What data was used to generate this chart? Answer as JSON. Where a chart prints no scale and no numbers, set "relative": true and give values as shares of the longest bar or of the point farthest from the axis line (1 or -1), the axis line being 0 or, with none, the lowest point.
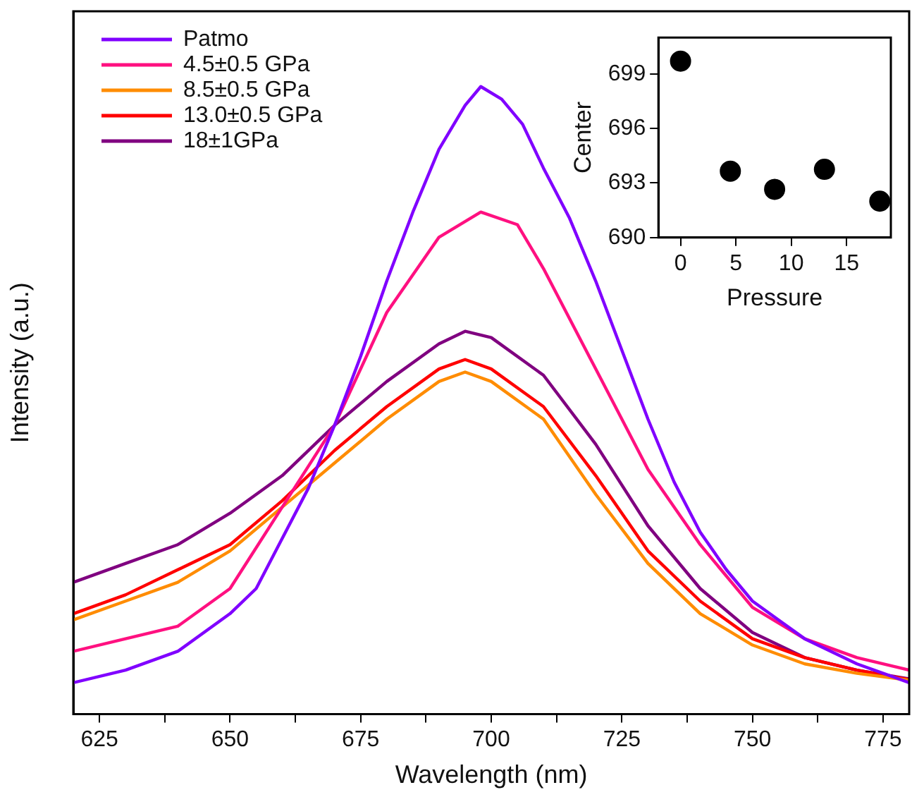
{
  "chart_data": [
    {
      "type": "line",
      "relative": true,
      "xlabel": "Wavelength (nm)",
      "ylabel": "Intensity (a.u.)",
      "legend": "top left",
      "xlim": [
        620,
        780
      ],
      "xticks": [
        625,
        {
          "value": 637.5,
          "label": null
        },
        650,
        {
          "value": 662.5,
          "label": null
        },
        675,
        {
          "value": 687.5,
          "label": null
        },
        700,
        {
          "value": 712.5,
          "label": null
        },
        725,
        {
          "value": 737.5,
          "label": null
        },
        750,
        {
          "value": 762.5,
          "label": null
        },
        775
      ],
      "series": [
        {
          "name": "Patmo",
          "color": "#8000ff",
          "x": [
            620,
            630,
            640,
            650,
            655,
            660,
            665,
            670,
            675,
            680,
            685,
            690,
            695,
            698,
            702,
            706,
            710,
            715,
            720,
            725,
            730,
            735,
            740,
            745,
            750,
            755,
            760,
            770,
            780
          ],
          "values": [
            0.05,
            0.07,
            0.1,
            0.16,
            0.2,
            0.28,
            0.36,
            0.46,
            0.57,
            0.69,
            0.8,
            0.9,
            0.97,
            1,
            0.98,
            0.94,
            0.87,
            0.79,
            0.69,
            0.58,
            0.47,
            0.37,
            0.29,
            0.23,
            0.18,
            0.15,
            0.12,
            0.08,
            0.05
          ]
        },
        {
          "name": "4.5±0.5 GPa",
          "color": "#ff1080",
          "x": [
            620,
            630,
            640,
            650,
            660,
            670,
            680,
            690,
            698,
            705,
            710,
            720,
            730,
            740,
            750,
            760,
            770,
            780
          ],
          "values": [
            0.1,
            0.12,
            0.14,
            0.2,
            0.33,
            0.46,
            0.64,
            0.76,
            0.8,
            0.78,
            0.71,
            0.55,
            0.39,
            0.27,
            0.17,
            0.12,
            0.09,
            0.07
          ]
        },
        {
          "name": "8.5±0.5 GPa",
          "color": "#ff8c00",
          "x": [
            620,
            630,
            640,
            650,
            660,
            670,
            680,
            690,
            695,
            700,
            710,
            720,
            730,
            740,
            750,
            760,
            770,
            780
          ],
          "values": [
            0.15,
            0.18,
            0.21,
            0.26,
            0.33,
            0.4,
            0.47,
            0.53,
            0.545,
            0.53,
            0.47,
            0.35,
            0.24,
            0.16,
            0.11,
            0.08,
            0.065,
            0.054
          ]
        },
        {
          "name": "13.0±0.5 GPa",
          "color": "#ff0000",
          "x": [
            620,
            630,
            640,
            650,
            660,
            670,
            680,
            690,
            695,
            700,
            710,
            720,
            730,
            740,
            750,
            760,
            770,
            780
          ],
          "values": [
            0.16,
            0.19,
            0.23,
            0.27,
            0.34,
            0.42,
            0.49,
            0.55,
            0.565,
            0.55,
            0.49,
            0.38,
            0.26,
            0.18,
            0.12,
            0.09,
            0.07,
            0.055
          ]
        },
        {
          "name": "18±1GPa",
          "color": "#800080",
          "x": [
            620,
            630,
            640,
            650,
            660,
            670,
            680,
            690,
            695,
            700,
            710,
            720,
            730,
            740,
            750,
            760,
            770,
            780
          ],
          "values": [
            0.21,
            0.24,
            0.27,
            0.32,
            0.38,
            0.46,
            0.53,
            0.59,
            0.61,
            0.6,
            0.54,
            0.43,
            0.3,
            0.2,
            0.13,
            0.09,
            0.07,
            0.056
          ]
        }
      ]
    },
    {
      "type": "scatter",
      "xlabel": "Pressure",
      "ylabel": "Center",
      "marker": "circle",
      "color": "#000000",
      "x": [
        0,
        4.5,
        8.5,
        13,
        18
      ],
      "values": [
        699.7,
        693.65,
        692.65,
        693.75,
        692.0
      ],
      "xlim": [
        -2,
        19
      ],
      "ylim": [
        690,
        701
      ],
      "xticks": [
        0,
        5,
        10,
        15
      ],
      "yticks": [
        690,
        693,
        696,
        699
      ]
    }
  ]
}
